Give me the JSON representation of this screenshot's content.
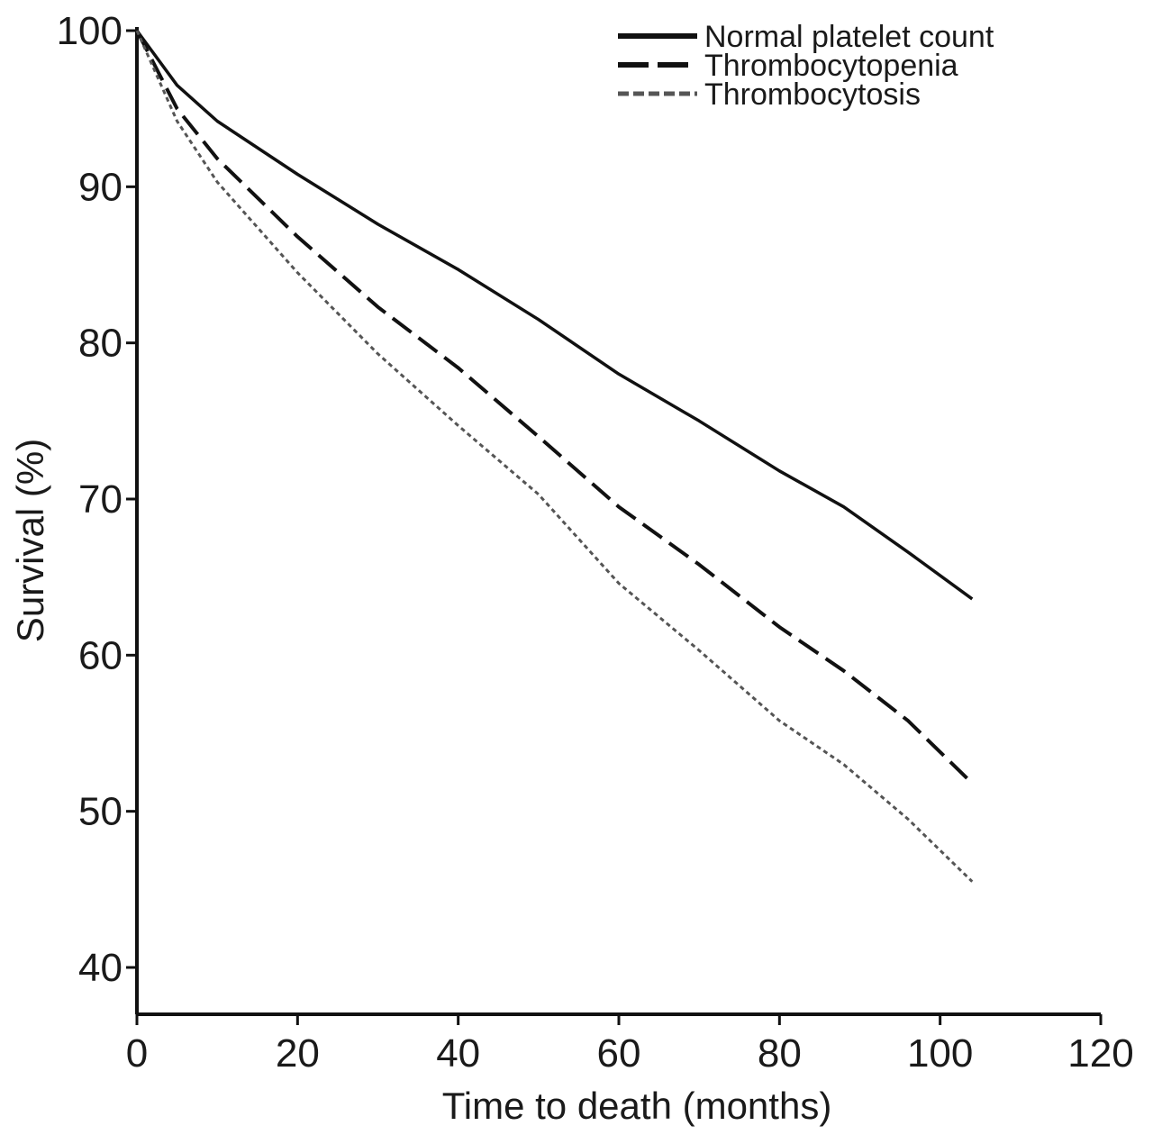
{
  "chart_data": {
    "type": "line",
    "xlabel": "Time to death (months)",
    "ylabel": "Survival (%)",
    "xlim": [
      0,
      120
    ],
    "ylim": [
      37,
      100
    ],
    "x_ticks": [
      0,
      20,
      40,
      60,
      80,
      100,
      120
    ],
    "y_ticks": [
      40,
      50,
      60,
      70,
      80,
      90,
      100
    ],
    "grid": false,
    "legend_position": "top-right",
    "series": [
      {
        "name": "Normal platelet count",
        "style": "solid",
        "color": "#111111",
        "x": [
          0,
          5,
          10,
          20,
          30,
          40,
          50,
          60,
          70,
          80,
          88,
          96,
          104
        ],
        "y": [
          100,
          96.5,
          94.2,
          90.8,
          87.6,
          84.7,
          81.5,
          78.0,
          75.0,
          71.8,
          69.5,
          66.6,
          63.6
        ]
      },
      {
        "name": "Thrombocytopenia",
        "style": "dashed",
        "color": "#111111",
        "x": [
          0,
          5,
          10,
          20,
          30,
          40,
          50,
          60,
          70,
          80,
          88,
          96,
          104
        ],
        "y": [
          100,
          95.0,
          91.8,
          86.8,
          82.3,
          78.4,
          74.0,
          69.5,
          65.8,
          61.8,
          59.0,
          55.8,
          51.8
        ]
      },
      {
        "name": "Thrombocytosis",
        "style": "dotted",
        "color": "#555555",
        "x": [
          0,
          5,
          10,
          20,
          30,
          40,
          50,
          60,
          70,
          80,
          88,
          96,
          104
        ],
        "y": [
          100,
          94.2,
          90.3,
          84.5,
          79.3,
          74.7,
          70.3,
          64.6,
          60.3,
          55.8,
          53.0,
          49.5,
          45.5
        ]
      }
    ]
  }
}
